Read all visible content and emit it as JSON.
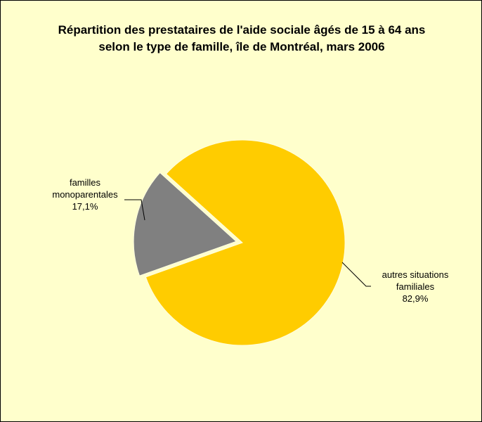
{
  "chart_data": {
    "type": "pie",
    "title": "Répartition des prestataires de l'aide sociale âgés de 15 à 64 ans selon le type de famille, île de Montréal, mars 2006",
    "categories": [
      "familles monoparentales",
      "autres situations familiales"
    ],
    "values": [
      17.1,
      82.9
    ],
    "value_labels": [
      "17,1%",
      "82,9%"
    ],
    "colors": [
      "#808080",
      "#ffcc00"
    ],
    "background": "#ffffcc"
  }
}
